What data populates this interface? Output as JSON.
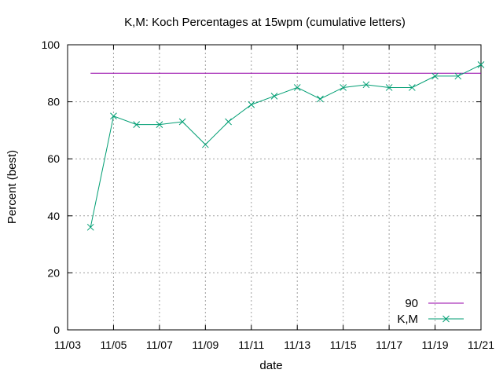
{
  "chart_data": {
    "type": "line",
    "title": "K,M: Koch Percentages at 15wpm (cumulative letters)",
    "xlabel": "date",
    "ylabel": "Percent (best)",
    "xlim": [
      "11/03",
      "11/21"
    ],
    "ylim": [
      0,
      100
    ],
    "grid": true,
    "legend_position": "bottom-right",
    "x_tick_labels": [
      "11/03",
      "11/05",
      "11/07",
      "11/09",
      "11/11",
      "11/13",
      "11/15",
      "11/17",
      "11/19",
      "11/21"
    ],
    "y_tick_labels": [
      "0",
      "20",
      "40",
      "60",
      "80",
      "100"
    ],
    "x": [
      "11/04",
      "11/05",
      "11/06",
      "11/07",
      "11/08",
      "11/09",
      "11/10",
      "11/11",
      "11/12",
      "11/13",
      "11/14",
      "11/15",
      "11/16",
      "11/17",
      "11/18",
      "11/19",
      "11/20",
      "11/21"
    ],
    "series": [
      {
        "name": "90",
        "color": "#9400a8",
        "marker": "none",
        "x": [
          "11/04",
          "11/21"
        ],
        "values": [
          90,
          90
        ]
      },
      {
        "name": "K,M",
        "color": "#009e73",
        "marker": "x",
        "values": [
          36,
          75,
          72,
          72,
          73,
          65,
          73,
          79,
          82,
          85,
          81,
          85,
          86,
          85,
          85,
          89,
          89,
          93
        ]
      }
    ]
  }
}
